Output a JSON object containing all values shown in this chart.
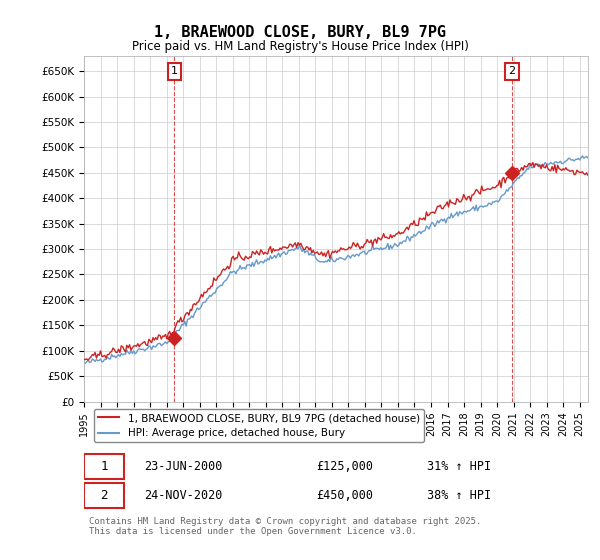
{
  "title": "1, BRAEWOOD CLOSE, BURY, BL9 7PG",
  "subtitle": "Price paid vs. HM Land Registry's House Price Index (HPI)",
  "ylabel_ticks": [
    "£0",
    "£50K",
    "£100K",
    "£150K",
    "£200K",
    "£250K",
    "£300K",
    "£350K",
    "£400K",
    "£450K",
    "£500K",
    "£550K",
    "£600K",
    "£650K"
  ],
  "ytick_values": [
    0,
    50000,
    100000,
    150000,
    200000,
    250000,
    300000,
    350000,
    400000,
    450000,
    500000,
    550000,
    600000,
    650000
  ],
  "ylim": [
    0,
    680000
  ],
  "xlim_start": 1995.0,
  "xlim_end": 2025.5,
  "hpi_color": "#6699cc",
  "sale_color": "#cc2222",
  "sale1_x": 2000.47,
  "sale1_y": 125000,
  "sale2_x": 2020.9,
  "sale2_y": 450000,
  "marker1_label": "1",
  "marker2_label": "2",
  "vline1_x": 2000.47,
  "vline2_x": 2020.9,
  "legend_sale": "1, BRAEWOOD CLOSE, BURY, BL9 7PG (detached house)",
  "legend_hpi": "HPI: Average price, detached house, Bury",
  "table_row1": "1    23-JUN-2000    £125,000    31% ↑ HPI",
  "table_row2": "2    24-NOV-2020    £450,000    38% ↑ HPI",
  "footnote": "Contains HM Land Registry data © Crown copyright and database right 2025.\nThis data is licensed under the Open Government Licence v3.0.",
  "background_color": "#ffffff",
  "grid_color": "#cccccc"
}
